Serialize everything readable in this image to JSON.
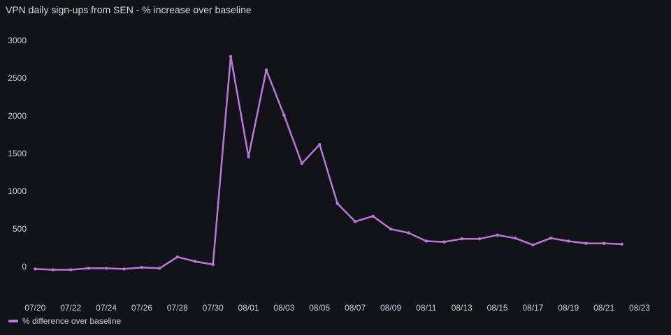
{
  "panel": {
    "title": "VPN daily sign-ups from SEN - % increase over baseline"
  },
  "colors": {
    "background": "#111217",
    "series": "#b877d9",
    "tick_text": "#ccccdc"
  },
  "chart_data": {
    "type": "line",
    "title": "VPN daily sign-ups from SEN - % increase over baseline",
    "xlabel": "",
    "ylabel": "",
    "ylim": [
      -350,
      3150
    ],
    "xlim": [
      "2022-07-19T18:00",
      "2022-08-23T16:00"
    ],
    "y_ticks": [
      0,
      500,
      1000,
      1500,
      2000,
      2500,
      3000
    ],
    "x_tick_labels": [
      "07/20",
      "07/22",
      "07/24",
      "07/26",
      "07/28",
      "07/30",
      "08/01",
      "08/03",
      "08/05",
      "08/07",
      "08/09",
      "08/11",
      "08/13",
      "08/15",
      "08/17",
      "08/19",
      "08/21",
      "08/23"
    ],
    "x_tick_dates": [
      "2022-07-20",
      "2022-07-22",
      "2022-07-24",
      "2022-07-26",
      "2022-07-28",
      "2022-07-30",
      "2022-08-01",
      "2022-08-03",
      "2022-08-05",
      "2022-08-07",
      "2022-08-09",
      "2022-08-11",
      "2022-08-13",
      "2022-08-15",
      "2022-08-17",
      "2022-08-19",
      "2022-08-21",
      "2022-08-23"
    ],
    "grid": false,
    "legend_position": "bottom-left",
    "series": [
      {
        "name": "% difference over baseline",
        "color": "#b877d9",
        "x": [
          "2022-07-20",
          "2022-07-21",
          "2022-07-22",
          "2022-07-23",
          "2022-07-24",
          "2022-07-25",
          "2022-07-26",
          "2022-07-27",
          "2022-07-28",
          "2022-07-29",
          "2022-07-30",
          "2022-07-31",
          "2022-08-01",
          "2022-08-02",
          "2022-08-03",
          "2022-08-04",
          "2022-08-05",
          "2022-08-06",
          "2022-08-07",
          "2022-08-08",
          "2022-08-09",
          "2022-08-10",
          "2022-08-11",
          "2022-08-12",
          "2022-08-13",
          "2022-08-14",
          "2022-08-15",
          "2022-08-16",
          "2022-08-17",
          "2022-08-18",
          "2022-08-19",
          "2022-08-20",
          "2022-08-21",
          "2022-08-22"
        ],
        "values": [
          -30,
          -40,
          -40,
          -20,
          -20,
          -30,
          -10,
          -20,
          130,
          70,
          30,
          2790,
          1460,
          2610,
          2010,
          1370,
          1620,
          840,
          600,
          670,
          500,
          450,
          340,
          330,
          370,
          370,
          420,
          380,
          290,
          380,
          340,
          310,
          310,
          300
        ]
      }
    ]
  }
}
